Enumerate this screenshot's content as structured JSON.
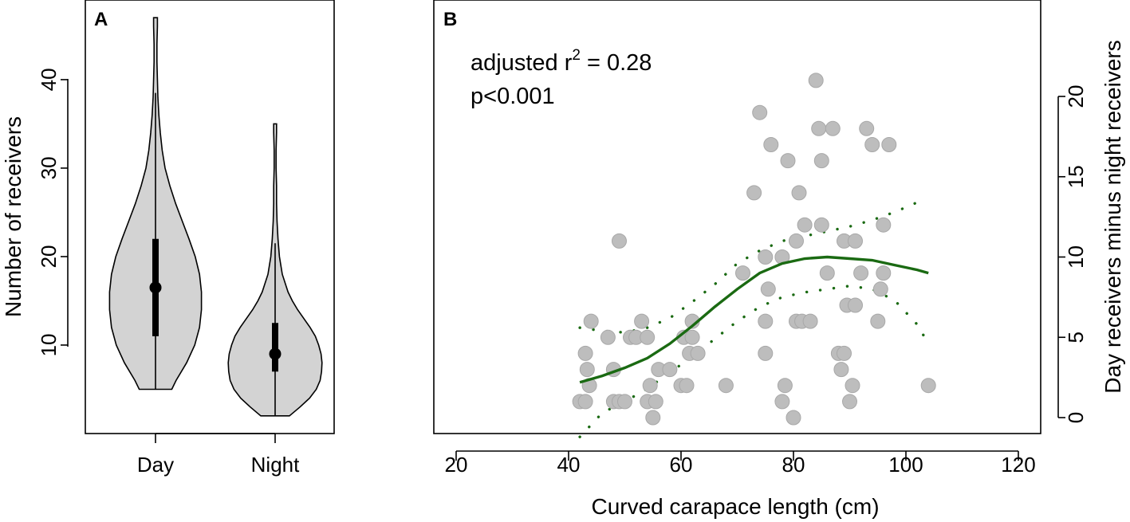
{
  "chart_data": [
    {
      "panel": "A",
      "type": "violin",
      "title": "",
      "xlabel": "",
      "ylabel": "Number of receivers",
      "ylim": [
        0,
        49
      ],
      "yticks": [
        10,
        20,
        30,
        40
      ],
      "categories": [
        "Day",
        "Night"
      ],
      "groups": [
        {
          "name": "Day",
          "min": 5,
          "max": 47,
          "q1": 11,
          "median": 16.5,
          "q3": 22,
          "whisker_low": 5,
          "whisker_high": 38.5,
          "density_y": [
            5,
            6,
            8,
            10,
            12,
            14,
            16,
            18,
            20,
            22,
            24,
            26,
            28,
            30,
            32,
            34,
            36,
            38,
            40,
            42,
            44,
            46,
            47
          ],
          "density_w": [
            0.34,
            0.43,
            0.65,
            0.82,
            0.92,
            0.96,
            0.96,
            0.92,
            0.83,
            0.7,
            0.56,
            0.42,
            0.3,
            0.2,
            0.14,
            0.1,
            0.07,
            0.05,
            0.04,
            0.03,
            0.03,
            0.04,
            0.04
          ]
        },
        {
          "name": "Night",
          "min": 2,
          "max": 35,
          "q1": 7,
          "median": 9,
          "q3": 12.5,
          "whisker_low": 2,
          "whisker_high": 21.5,
          "density_y": [
            2,
            3,
            4,
            5,
            6,
            7,
            8,
            9,
            10,
            11,
            12,
            13,
            14,
            15,
            16,
            18,
            20,
            22,
            24,
            26,
            28,
            30,
            32,
            34,
            35
          ],
          "density_w": [
            0.3,
            0.52,
            0.72,
            0.86,
            0.94,
            0.97,
            0.98,
            0.96,
            0.91,
            0.84,
            0.73,
            0.6,
            0.47,
            0.36,
            0.27,
            0.15,
            0.09,
            0.06,
            0.04,
            0.03,
            0.03,
            0.02,
            0.02,
            0.03,
            0.03
          ]
        }
      ],
      "panel_label": "A"
    },
    {
      "panel": "B",
      "type": "scatter",
      "title": "",
      "xlabel": "Curved carapace length (cm)",
      "ylabel": "Day receivers minus night receivers",
      "xlim": [
        17,
        121
      ],
      "ylim": [
        -1,
        25
      ],
      "xticks": [
        20,
        40,
        60,
        80,
        100,
        120
      ],
      "yticks": [
        0,
        5,
        10,
        15,
        20
      ],
      "y_axis_side": "right",
      "panel_label": "B",
      "annotation": {
        "line1_prefix": "adjusted r",
        "line1_sup": "2",
        "line1_suffix": " = 0.28",
        "line2": "p<0.001"
      },
      "points": [
        [
          42,
          1
        ],
        [
          43,
          1
        ],
        [
          43,
          4
        ],
        [
          43.3,
          3
        ],
        [
          43.7,
          2
        ],
        [
          44,
          6
        ],
        [
          47,
          5
        ],
        [
          48,
          3
        ],
        [
          48,
          1
        ],
        [
          49,
          11
        ],
        [
          49,
          1
        ],
        [
          50,
          1
        ],
        [
          51,
          5
        ],
        [
          52,
          5
        ],
        [
          53,
          6
        ],
        [
          54,
          5
        ],
        [
          54,
          1
        ],
        [
          54.5,
          2
        ],
        [
          55,
          0
        ],
        [
          55.5,
          1
        ],
        [
          56,
          3
        ],
        [
          58,
          3
        ],
        [
          60,
          2
        ],
        [
          60.5,
          5
        ],
        [
          61,
          2
        ],
        [
          61.5,
          4
        ],
        [
          62,
          6
        ],
        [
          62,
          5
        ],
        [
          63,
          4
        ],
        [
          68,
          2
        ],
        [
          71,
          9
        ],
        [
          73,
          14
        ],
        [
          74,
          19
        ],
        [
          75,
          10
        ],
        [
          75,
          6
        ],
        [
          75,
          4
        ],
        [
          75.5,
          8
        ],
        [
          76,
          17
        ],
        [
          78,
          10
        ],
        [
          78,
          1
        ],
        [
          78.5,
          2
        ],
        [
          79,
          16
        ],
        [
          80,
          0
        ],
        [
          80.5,
          6
        ],
        [
          80.5,
          11
        ],
        [
          81,
          14
        ],
        [
          81.5,
          6
        ],
        [
          82,
          12
        ],
        [
          83,
          6
        ],
        [
          84,
          21
        ],
        [
          84.5,
          18
        ],
        [
          85,
          16
        ],
        [
          85,
          12
        ],
        [
          86,
          9
        ],
        [
          87,
          18
        ],
        [
          88,
          4
        ],
        [
          88.5,
          3
        ],
        [
          89,
          4
        ],
        [
          89,
          11
        ],
        [
          89.5,
          7
        ],
        [
          90,
          1
        ],
        [
          90.5,
          2
        ],
        [
          91,
          7
        ],
        [
          91,
          11
        ],
        [
          92,
          9
        ],
        [
          93,
          18
        ],
        [
          94,
          17
        ],
        [
          95,
          6
        ],
        [
          95.5,
          8
        ],
        [
          96,
          9
        ],
        [
          96,
          12
        ],
        [
          97,
          17
        ],
        [
          104,
          2
        ]
      ],
      "fit": {
        "color": "#1a6a12",
        "x": [
          42,
          46,
          50,
          54,
          58,
          62,
          66,
          70,
          74,
          78,
          82,
          86,
          90,
          94,
          98,
          102,
          104
        ],
        "y": [
          2.2,
          2.6,
          3.1,
          3.7,
          4.6,
          5.7,
          6.9,
          8.0,
          9.0,
          9.6,
          9.9,
          10.0,
          9.9,
          9.8,
          9.5,
          9.2,
          9.0
        ],
        "ci_upper_x": [
          42,
          46,
          50,
          54,
          58,
          62,
          66,
          70,
          74,
          78,
          82,
          86,
          90,
          94,
          98,
          102,
          103
        ],
        "ci_upper": [
          5.6,
          5.4,
          5.3,
          5.6,
          6.2,
          7.2,
          8.3,
          9.6,
          10.4,
          11.0,
          11.3,
          11.6,
          11.9,
          12.3,
          12.8,
          13.4,
          13.6
        ],
        "ci_lower_x": [
          42,
          46,
          50,
          54,
          58,
          62,
          66,
          70,
          74,
          78,
          82,
          86,
          90,
          94,
          98,
          102,
          104
        ],
        "ci_lower": [
          -1.2,
          0.3,
          1.0,
          1.8,
          2.8,
          3.8,
          4.9,
          6.0,
          6.9,
          7.5,
          7.8,
          8.0,
          8.2,
          8.0,
          7.3,
          5.8,
          4.6
        ]
      }
    }
  ]
}
